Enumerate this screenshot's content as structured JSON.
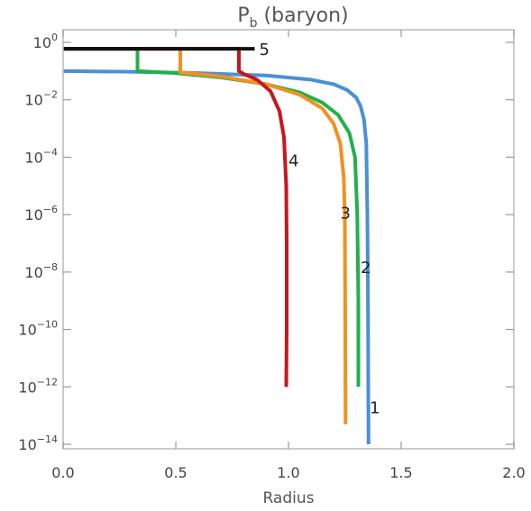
{
  "chart_data": {
    "type": "line",
    "title_main": "P",
    "title_sub": "b",
    "title_rest": " (baryon)",
    "xlabel": "Radius",
    "ylabel": "",
    "xlim": [
      0.0,
      2.0
    ],
    "ylim": [
      1e-14,
      2.0
    ],
    "yscale": "log",
    "xticks": [
      0.0,
      0.5,
      1.0,
      1.5,
      2.0
    ],
    "xtick_labels": [
      "0.0",
      "0.5",
      "1.0",
      "1.5",
      "2.0"
    ],
    "yticks": [
      {
        "value": 1,
        "base": "10",
        "exp": "0"
      },
      {
        "value": 0.01,
        "base": "10",
        "exp": "−2"
      },
      {
        "value": 0.0001,
        "base": "10",
        "exp": "−4"
      },
      {
        "value": 1e-06,
        "base": "10",
        "exp": "−6"
      },
      {
        "value": 1e-08,
        "base": "10",
        "exp": "−8"
      },
      {
        "value": 1e-10,
        "base": "10",
        "exp": "−10"
      },
      {
        "value": 1e-12,
        "base": "10",
        "exp": "−12"
      },
      {
        "value": 1e-14,
        "base": "10",
        "exp": "−14"
      }
    ],
    "grid": false,
    "legend": "none",
    "series": [
      {
        "label": "1",
        "color": "#4A90D9",
        "label_at": [
          1.36,
          2e-13
        ],
        "x": [
          0.0,
          0.3,
          0.6,
          0.9,
          1.1,
          1.2,
          1.26,
          1.3,
          1.32,
          1.335,
          1.345,
          1.35,
          1.352,
          1.353,
          1.354,
          1.355
        ],
        "y": [
          0.1,
          0.095,
          0.085,
          0.07,
          0.05,
          0.035,
          0.022,
          0.012,
          0.006,
          0.002,
          0.0003,
          1e-06,
          1e-08,
          1e-10,
          1e-12,
          1e-14
        ]
      },
      {
        "label": "2",
        "color": "#22B04B",
        "label_at": [
          1.32,
          1.5e-08
        ],
        "x": [
          0.0,
          0.33,
          0.33,
          0.5,
          0.7,
          0.9,
          1.05,
          1.15,
          1.22,
          1.27,
          1.295,
          1.305,
          1.31,
          1.31
        ],
        "y": [
          0.6,
          0.6,
          0.1,
          0.085,
          0.06,
          0.035,
          0.018,
          0.008,
          0.003,
          0.0007,
          0.0001,
          1e-06,
          1e-09,
          1e-12
        ]
      },
      {
        "label": "3",
        "color": "#F0921E",
        "label_at": [
          1.23,
          1.2e-06
        ],
        "x": [
          0.0,
          0.52,
          0.52,
          0.7,
          0.9,
          1.05,
          1.15,
          1.2,
          1.23,
          1.245,
          1.25,
          1.252,
          1.253
        ],
        "y": [
          0.6,
          0.6,
          0.09,
          0.065,
          0.035,
          0.015,
          0.005,
          0.0015,
          0.0003,
          2e-05,
          1e-06,
          1e-10,
          5e-14
        ]
      },
      {
        "label": "4",
        "color": "#C8161D",
        "label_at": [
          1.0,
          8e-05
        ],
        "x": [
          0.0,
          0.78,
          0.78,
          0.8,
          0.86,
          0.92,
          0.96,
          0.98,
          0.99,
          0.992,
          0.992,
          0.99
        ],
        "y": [
          0.6,
          0.6,
          0.1,
          0.08,
          0.05,
          0.02,
          0.004,
          0.0005,
          1e-05,
          1e-07,
          1e-10,
          1e-12
        ]
      },
      {
        "label": "5",
        "color": "#111111",
        "label_at": [
          0.87,
          0.6
        ],
        "x": [
          0.0,
          0.85
        ],
        "y": [
          0.6,
          0.6
        ]
      }
    ]
  }
}
